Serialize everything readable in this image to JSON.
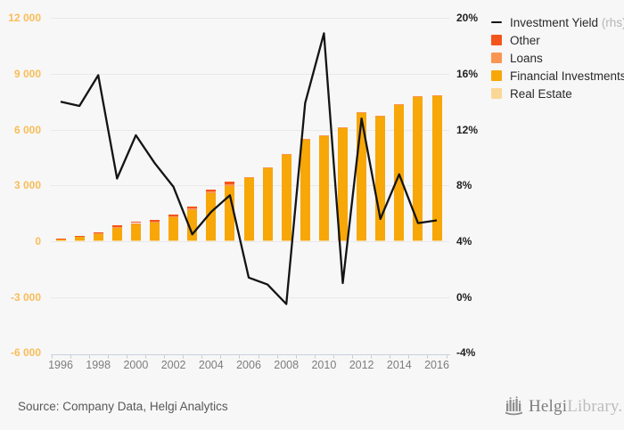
{
  "chart_data": {
    "type": "bar",
    "subtype": "stacked-bars-with-line-overlay",
    "categories": [
      1996,
      1997,
      1998,
      1999,
      2000,
      2001,
      2002,
      2003,
      2004,
      2005,
      2006,
      2007,
      2008,
      2009,
      2010,
      2011,
      2012,
      2013,
      2014,
      2015,
      2016
    ],
    "series": [
      {
        "name": "Real Estate",
        "type": "bar",
        "axis": "left",
        "color": "#fad795",
        "values": [
          30,
          40,
          40,
          50,
          50,
          50,
          50,
          50,
          50,
          50,
          40,
          40,
          40,
          40,
          40,
          40,
          40,
          40,
          40,
          40,
          40
        ]
      },
      {
        "name": "Financial Investments",
        "type": "bar",
        "axis": "left",
        "color": "#f7a707",
        "values": [
          110,
          240,
          380,
          690,
          890,
          980,
          1260,
          1640,
          2540,
          2930,
          3370,
          3880,
          4640,
          5440,
          5640,
          6090,
          6890,
          6690,
          7290,
          7740,
          7790
        ]
      },
      {
        "name": "Loans",
        "type": "bar",
        "axis": "left",
        "color": "#fa9652",
        "values": [
          0,
          0,
          20,
          30,
          40,
          40,
          50,
          60,
          70,
          80,
          40,
          30,
          20,
          20,
          20,
          20,
          20,
          20,
          20,
          20,
          20
        ]
      },
      {
        "name": "Other",
        "type": "bar",
        "axis": "left",
        "color": "#f4551c",
        "values": [
          10,
          20,
          60,
          80,
          90,
          80,
          90,
          100,
          140,
          140,
          0,
          0,
          0,
          0,
          0,
          0,
          0,
          0,
          0,
          0,
          0
        ]
      },
      {
        "name": "Investment Yield",
        "type": "line",
        "axis": "right",
        "color": "#141414",
        "values": [
          14.0,
          13.7,
          15.9,
          8.5,
          11.6,
          9.6,
          7.9,
          4.5,
          6.1,
          7.3,
          1.4,
          0.9,
          -0.5,
          13.9,
          18.9,
          1.0,
          12.8,
          5.6,
          8.8,
          5.3,
          5.5
        ]
      }
    ],
    "left_axis": {
      "ticks": [
        "12 000",
        "9 000",
        "6 000",
        "3 000",
        "0",
        "-3 000",
        "-6 000"
      ],
      "values": [
        12000,
        9000,
        6000,
        3000,
        0,
        -3000,
        -6000
      ],
      "range": [
        -6000,
        12000
      ]
    },
    "right_axis": {
      "ticks": [
        "20%",
        "16%",
        "12%",
        "8%",
        "4%",
        "0%",
        "-4%"
      ],
      "values": [
        20,
        16,
        12,
        8,
        4,
        0,
        -4
      ],
      "range": [
        -4,
        20
      ]
    },
    "x_tick_labels": [
      "1996",
      "1998",
      "2000",
      "2002",
      "2004",
      "2006",
      "2008",
      "2010",
      "2012",
      "2014",
      "2016"
    ],
    "grid": true,
    "legend_position": "top-right",
    "title": "",
    "xlabel": "",
    "ylabel": ""
  },
  "legend": {
    "items": [
      {
        "label": "Investment Yield",
        "suffix": " (rhs)",
        "swatch": "line",
        "color": "#141414"
      },
      {
        "label": "Other",
        "suffix": "",
        "swatch": "square",
        "color": "#f4551c"
      },
      {
        "label": "Loans",
        "suffix": "",
        "swatch": "square",
        "color": "#fa9652"
      },
      {
        "label": "Financial Investments",
        "suffix": "",
        "swatch": "square",
        "color": "#f7a707"
      },
      {
        "label": "Real Estate",
        "suffix": "",
        "swatch": "square",
        "color": "#fad795"
      }
    ]
  },
  "footer": {
    "source": "Source: Company Data, Helgi Analytics",
    "logo_word": "Helgi",
    "logo_suffix": "Library."
  },
  "colors": {
    "background": "#f7f7f7",
    "gridline": "#e9e9e9",
    "axis": "#c9d0db",
    "left_tick_labels": "#f9bd59",
    "right_tick_labels": "#1f1f1f",
    "x_tick_labels": "#7d7d7d",
    "line": "#141414",
    "logo_icon": "#8d8d8d"
  }
}
